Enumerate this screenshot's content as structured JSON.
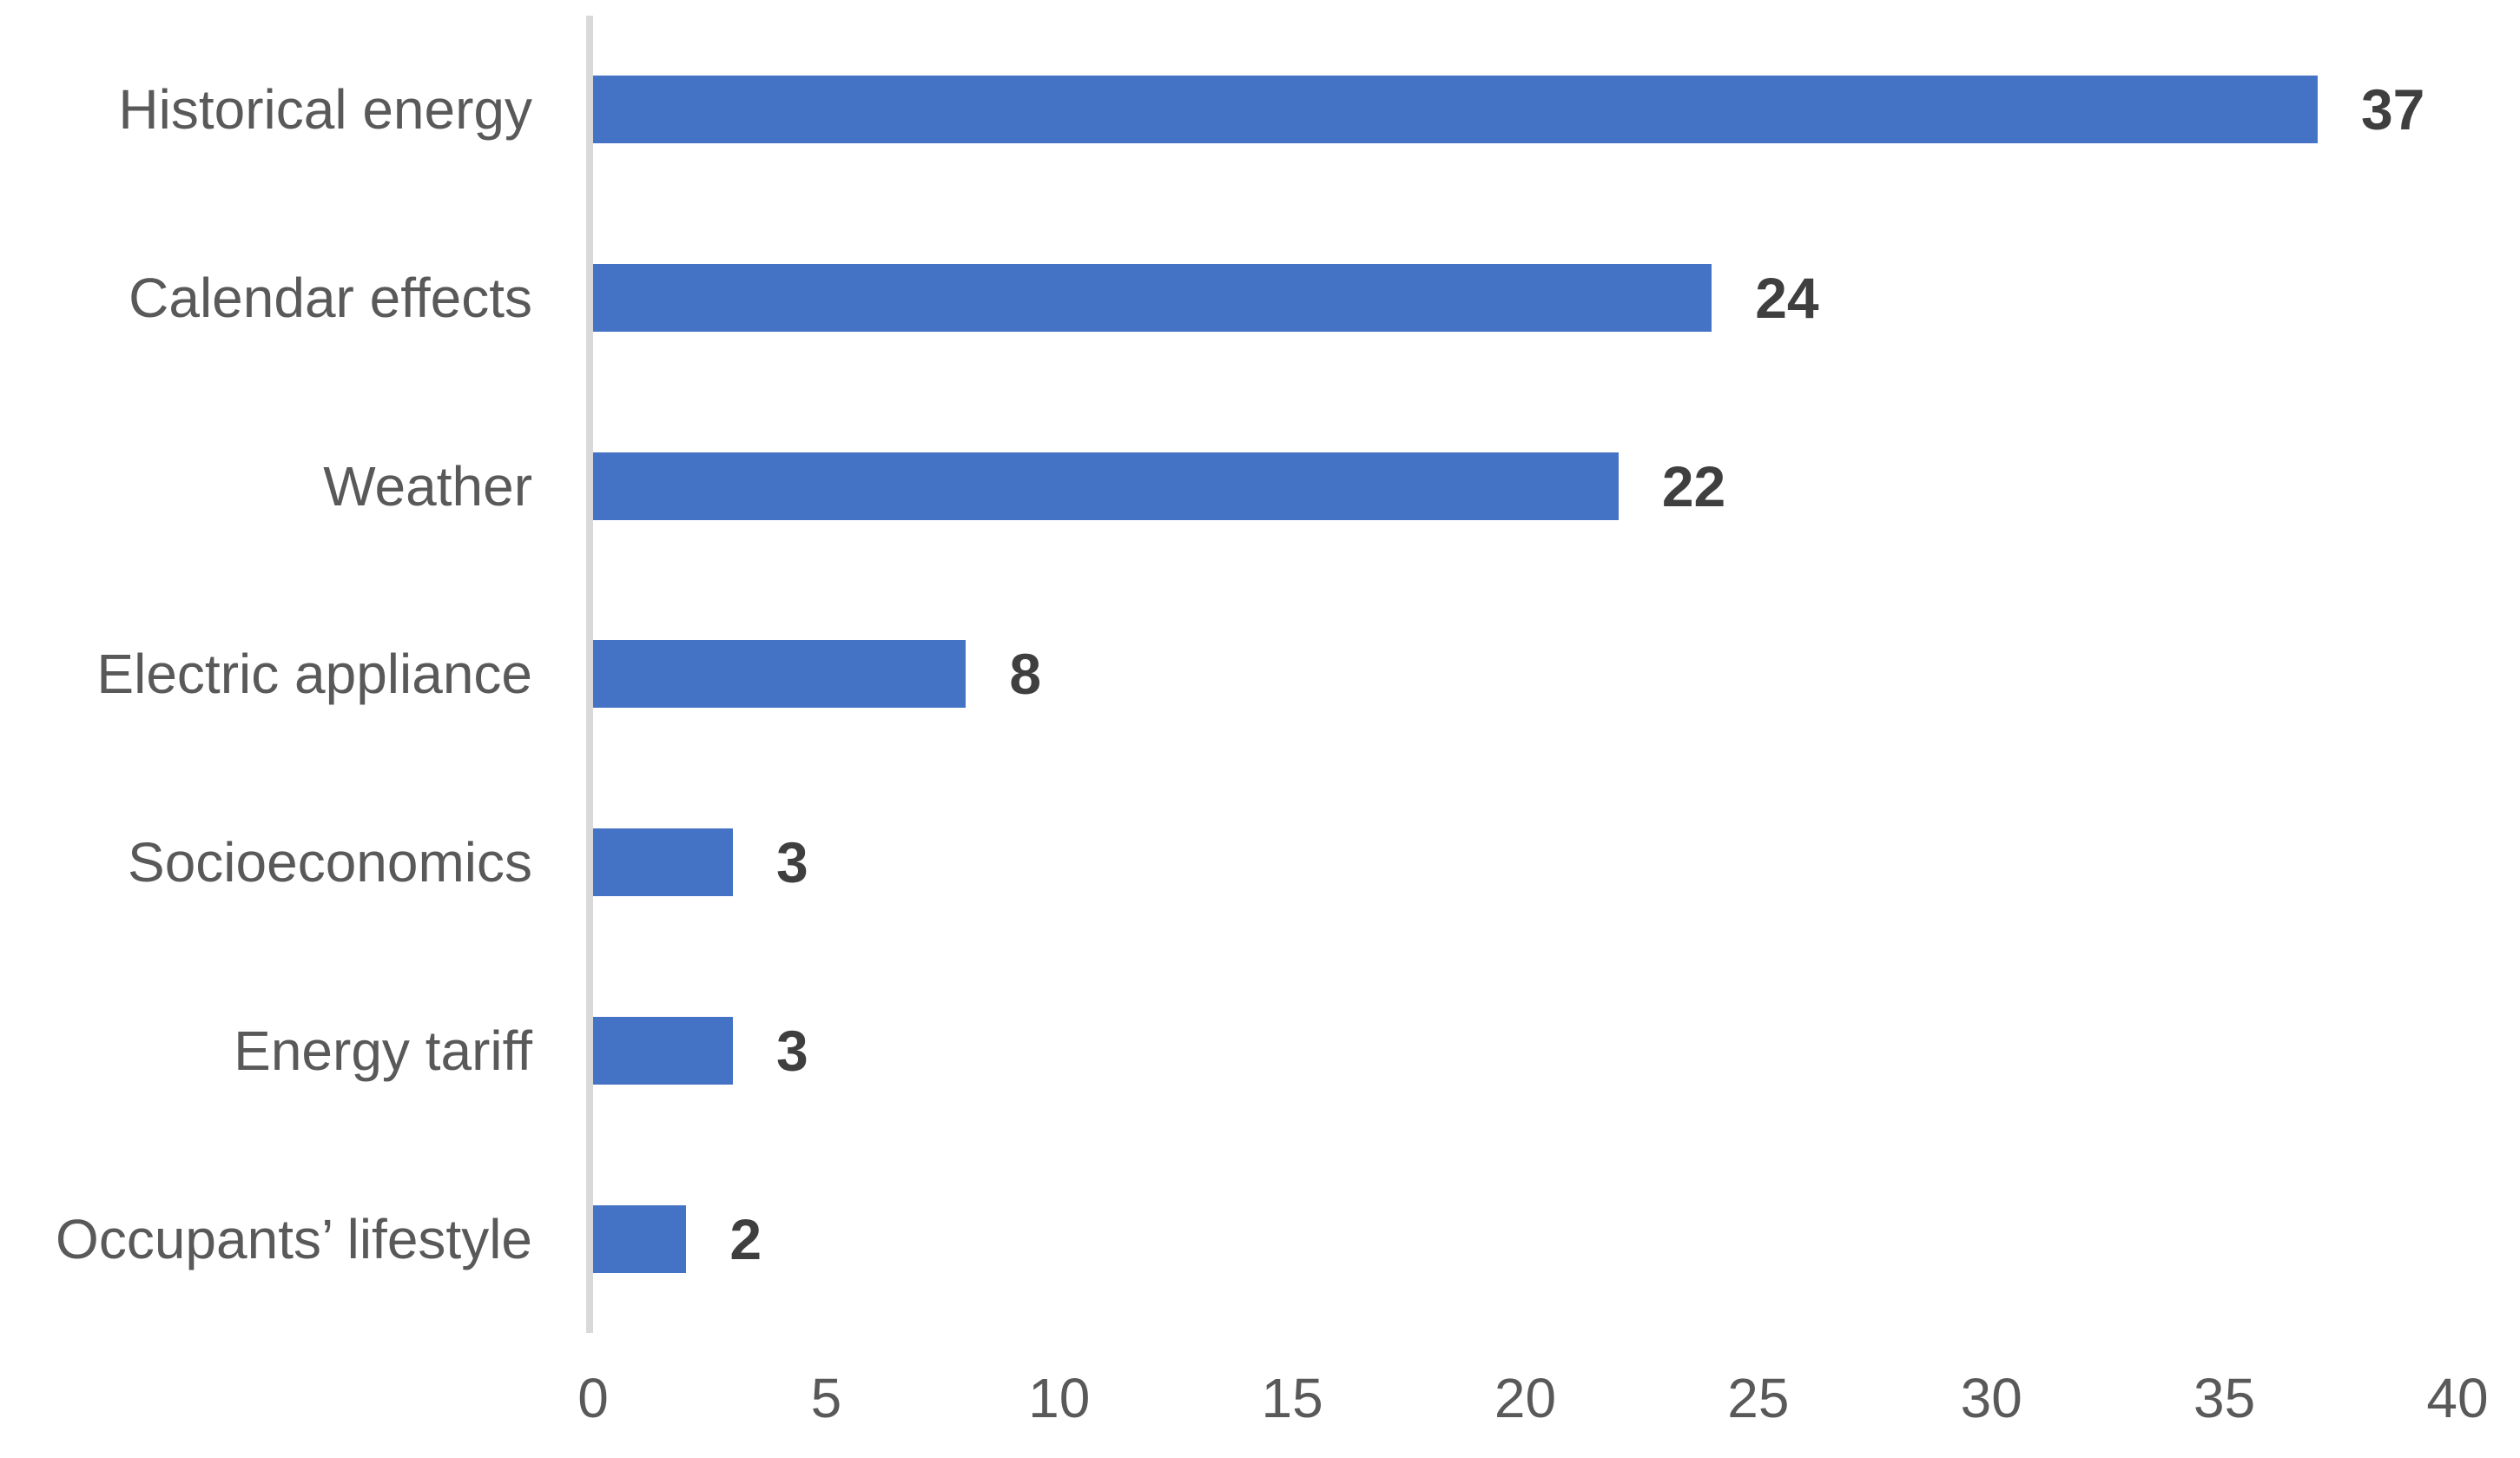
{
  "chart_data": {
    "type": "bar",
    "orientation": "horizontal",
    "title": "",
    "xlabel": "",
    "ylabel": "",
    "categories": [
      "Historical energy",
      "Calendar effects",
      "Weather",
      "Electric appliance",
      "Socioeconomics",
      "Energy tariff",
      "Occupants’ lifestyle"
    ],
    "values": [
      37,
      24,
      22,
      8,
      3,
      3,
      2
    ],
    "data_labels": [
      "37",
      "24",
      "22",
      "8",
      "3",
      "3",
      "2"
    ],
    "xlim": [
      0,
      40
    ],
    "x_ticks": [
      "0",
      "5",
      "10",
      "15",
      "20",
      "25",
      "30",
      "35",
      "40"
    ],
    "grid": false,
    "legend": false,
    "colors": {
      "bar": "#4472C4",
      "axis_line": "#D9D9D9",
      "category_label": "#595959",
      "tick_label": "#595959",
      "value_label": "#3F3F3F",
      "background": "#FFFFFF"
    }
  }
}
